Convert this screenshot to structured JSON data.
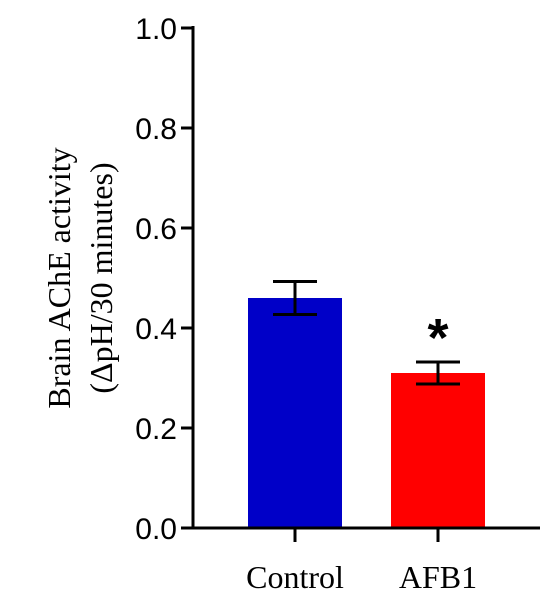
{
  "chart_data": {
    "type": "bar",
    "categories": [
      "Control",
      "AFB1"
    ],
    "values": [
      0.46,
      0.31
    ],
    "errors": [
      0.033,
      0.022
    ],
    "colors": [
      "#0000c8",
      "#ff0000"
    ],
    "annotations": [
      "",
      "*"
    ],
    "ylabel_lines": [
      "Brain AChE activity",
      "(ΔpH/30 minutes)"
    ],
    "ylim": [
      0,
      1.0
    ],
    "yticks": [
      "0.0",
      "0.2",
      "0.4",
      "0.6",
      "0.8",
      "1.0"
    ],
    "ytick_values": [
      0,
      0.2,
      0.4,
      0.6,
      0.8,
      1.0
    ],
    "grid": false,
    "legend": "none"
  }
}
